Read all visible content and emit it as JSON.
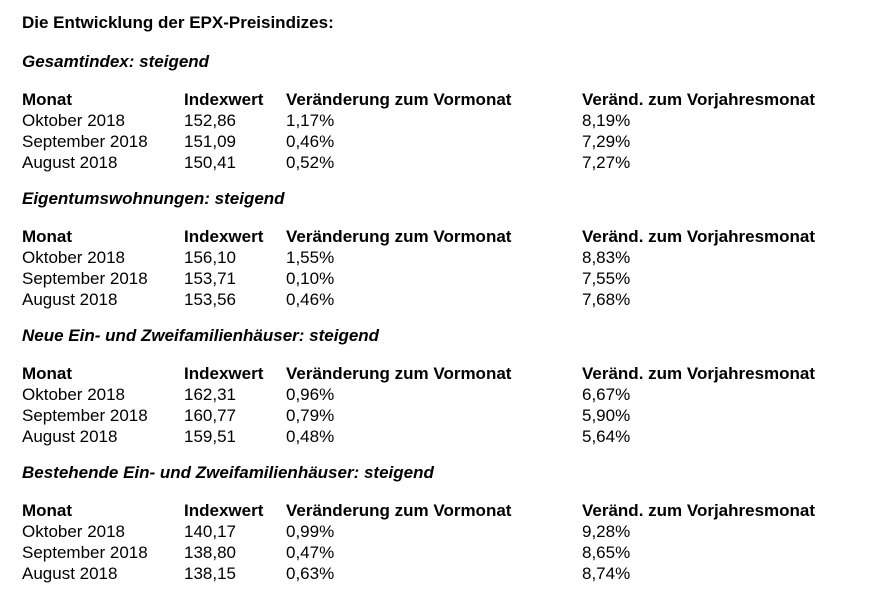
{
  "title": "Die Entwicklung der EPX-Preisindizes:",
  "columns": [
    "Monat",
    "Indexwert",
    "Veränderung zum Vormonat",
    "Veränd. zum Vorjahresmonat"
  ],
  "sections": [
    {
      "title": "Gesamtindex: steigend",
      "rows": [
        {
          "month": "Oktober 2018",
          "index": "152,86",
          "mom": "1,17%",
          "yoy": "8,19%"
        },
        {
          "month": "September 2018",
          "index": "151,09",
          "mom": "0,46%",
          "yoy": "7,29%"
        },
        {
          "month": "August 2018",
          "index": "150,41",
          "mom": "0,52%",
          "yoy": "7,27%"
        }
      ]
    },
    {
      "title": "Eigentumswohnungen: steigend",
      "rows": [
        {
          "month": "Oktober 2018",
          "index": "156,10",
          "mom": "1,55%",
          "yoy": "8,83%"
        },
        {
          "month": "September 2018",
          "index": "153,71",
          "mom": "0,10%",
          "yoy": "7,55%"
        },
        {
          "month": "August 2018",
          "index": "153,56",
          "mom": "0,46%",
          "yoy": "7,68%"
        }
      ]
    },
    {
      "title": "Neue Ein- und Zweifamilienhäuser: steigend",
      "rows": [
        {
          "month": "Oktober 2018",
          "index": "162,31",
          "mom": "0,96%",
          "yoy": "6,67%"
        },
        {
          "month": "September 2018",
          "index": "160,77",
          "mom": "0,79%",
          "yoy": "5,90%"
        },
        {
          "month": "August 2018",
          "index": "159,51",
          "mom": "0,48%",
          "yoy": "5,64%"
        }
      ]
    },
    {
      "title": "Bestehende Ein- und Zweifamilienhäuser: steigend",
      "rows": [
        {
          "month": "Oktober 2018",
          "index": "140,17",
          "mom": "0,99%",
          "yoy": "9,28%"
        },
        {
          "month": "September 2018",
          "index": "138,80",
          "mom": "0,47%",
          "yoy": "8,65%"
        },
        {
          "month": "August 2018",
          "index": "138,15",
          "mom": "0,63%",
          "yoy": "8,74%"
        }
      ]
    }
  ]
}
